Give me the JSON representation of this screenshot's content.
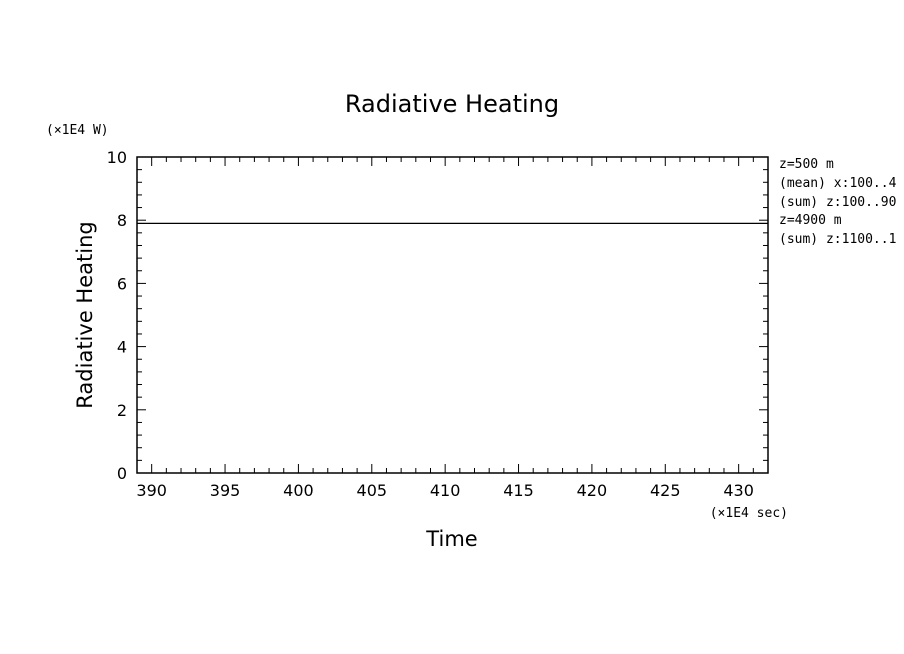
{
  "chart_data": {
    "type": "line",
    "title": "Radiative Heating",
    "xlabel": "Time",
    "ylabel": "Radiative Heating",
    "x_unit": "(×1E4 sec)",
    "y_unit": "(×1E4 W)",
    "xlim": [
      389,
      432
    ],
    "ylim": [
      0,
      10
    ],
    "x_ticks": [
      390,
      395,
      400,
      405,
      410,
      415,
      420,
      425,
      430
    ],
    "y_ticks": [
      0,
      2,
      4,
      6,
      8,
      10
    ],
    "grid": false,
    "series": [
      {
        "x": [
          389,
          395,
          400,
          405,
          410,
          415,
          420,
          425,
          432
        ],
        "y": [
          7.9,
          7.9,
          7.9,
          7.9,
          7.9,
          7.9,
          7.9,
          7.9,
          7.9
        ]
      }
    ],
    "annotations": [
      "z=500 m",
      "(mean) x:100..4",
      "(sum) z:100..90",
      "z=4900 m",
      "(sum) z:1100..1"
    ]
  }
}
